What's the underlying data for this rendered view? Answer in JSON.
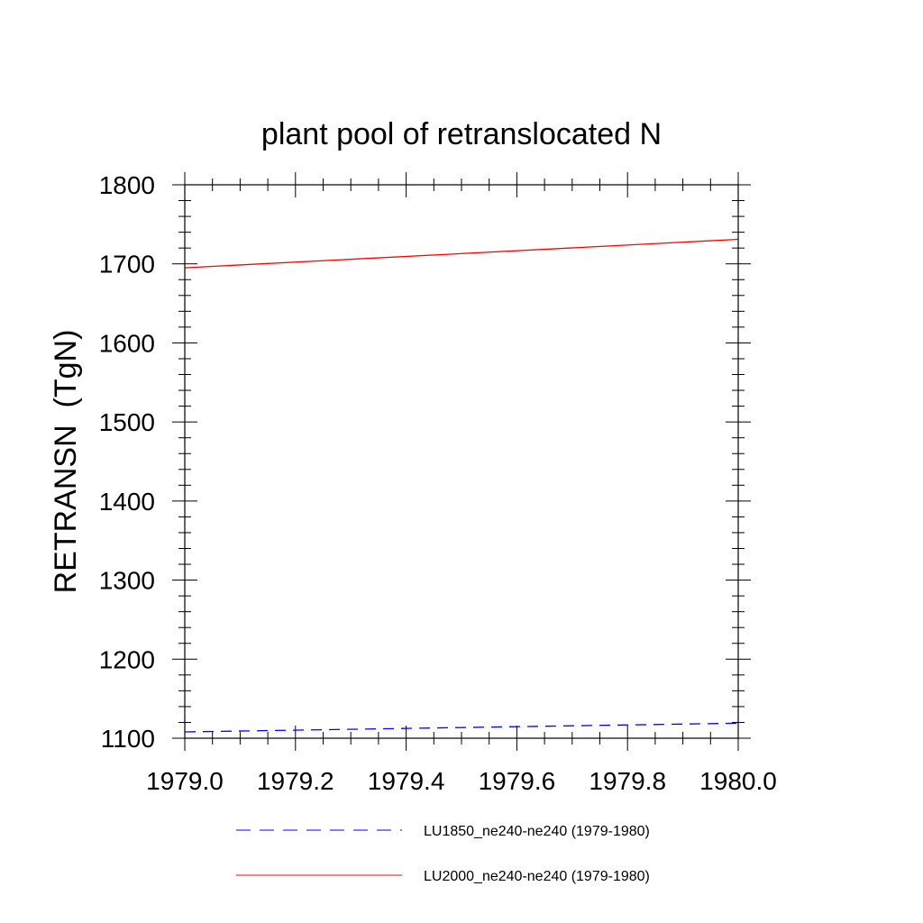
{
  "chart_data": {
    "type": "line",
    "title": "plant pool of retranslocated N",
    "xlabel": "",
    "ylabel": "RETRANSN  (TgN)",
    "xlim": [
      1979.0,
      1980.0
    ],
    "ylim": [
      1100,
      1800
    ],
    "xticks": [
      1979.0,
      1979.2,
      1979.4,
      1979.6,
      1979.8,
      1980.0
    ],
    "xtick_labels": [
      "1979.0",
      "1979.2",
      "1979.4",
      "1979.6",
      "1979.8",
      "1980.0"
    ],
    "yticks": [
      1100,
      1200,
      1300,
      1400,
      1500,
      1600,
      1700,
      1800
    ],
    "ytick_labels": [
      "1100",
      "1200",
      "1300",
      "1400",
      "1500",
      "1600",
      "1700",
      "1800"
    ],
    "grid": false,
    "legend_position": "bottom",
    "series": [
      {
        "name": "LU1850_ne240-ne240 (1979-1980)",
        "color": "#0000ff",
        "dash": "dashed",
        "x": [
          1979.0,
          1980.0
        ],
        "y": [
          1108,
          1119
        ]
      },
      {
        "name": "LU2000_ne240-ne240 (1979-1980)",
        "color": "#ff0000",
        "dash": "solid",
        "x": [
          1979.0,
          1980.0
        ],
        "y": [
          1695,
          1731
        ]
      }
    ]
  }
}
